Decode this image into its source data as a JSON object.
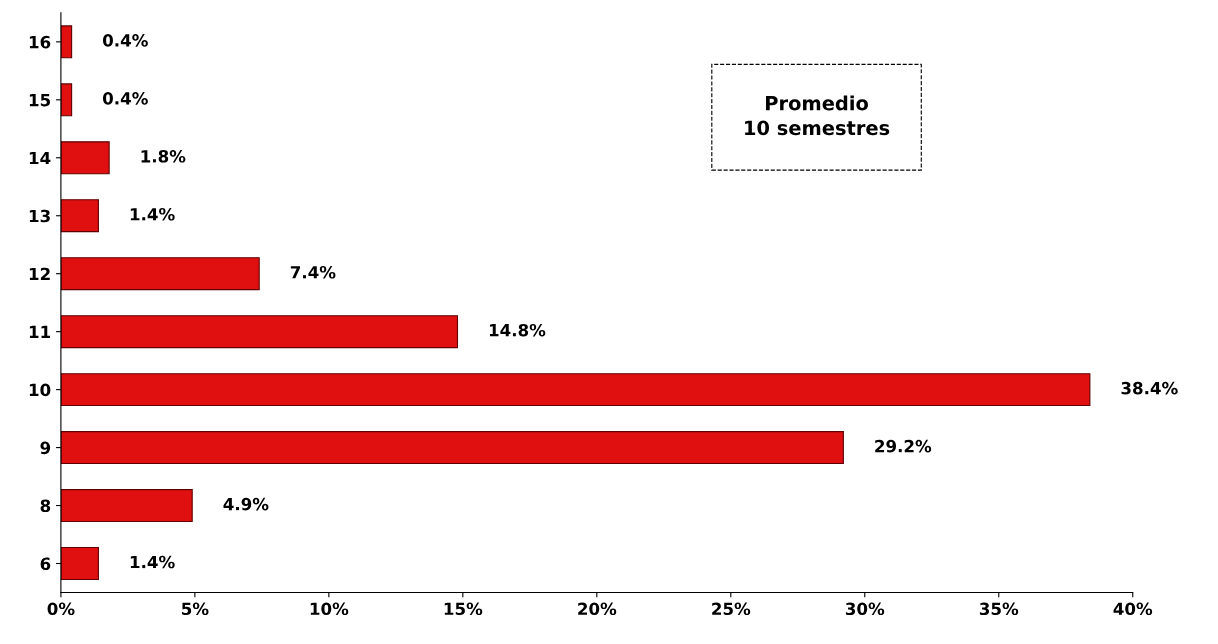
{
  "chart_data": {
    "type": "bar",
    "orientation": "horizontal",
    "categories": [
      "16",
      "15",
      "14",
      "13",
      "12",
      "11",
      "10",
      "9",
      "8",
      "6"
    ],
    "values": [
      0.4,
      0.4,
      1.8,
      1.4,
      7.4,
      14.8,
      38.4,
      29.2,
      4.9,
      1.4
    ],
    "value_labels": [
      "0.4%",
      "0.4%",
      "1.8%",
      "1.4%",
      "7.4%",
      "14.8%",
      "38.4%",
      "29.2%",
      "4.9%",
      "1.4%"
    ],
    "color": "#e01010",
    "xlim": [
      0,
      40
    ],
    "xticks": [
      {
        "value": 0,
        "label": "0%"
      },
      {
        "value": 5,
        "label": "5%"
      },
      {
        "value": 10,
        "label": "10%"
      },
      {
        "value": 15,
        "label": "15%"
      },
      {
        "value": 20,
        "label": "20%"
      },
      {
        "value": 25,
        "label": "25%"
      },
      {
        "value": 30,
        "label": "30%"
      },
      {
        "value": 35,
        "label": "35%"
      },
      {
        "value": 40,
        "label": "40%"
      }
    ],
    "annotations": [
      "Promedio\n10 semestres"
    ],
    "grid": false,
    "legend": false
  }
}
